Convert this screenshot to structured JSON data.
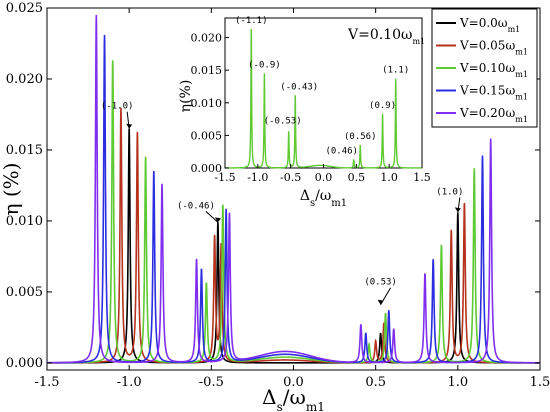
{
  "chart_data": [
    {
      "type": "line",
      "xlabel": "Δs/ωm1",
      "ylabel": "η (%)",
      "xlim": [
        -1.5,
        1.5
      ],
      "ylim": [
        -0.0005,
        0.025
      ],
      "xticks": [
        -1.5,
        -1.0,
        -0.5,
        0.0,
        0.5,
        1.0,
        1.5
      ],
      "xtick_labels": [
        "-1.5",
        "-1.0",
        "-0.5",
        "0.0",
        "0.5",
        "1.0",
        "1.5"
      ],
      "yticks": [
        0.0,
        0.005,
        0.01,
        0.015,
        0.02,
        0.025
      ],
      "ytick_labels": [
        "0.000",
        "0.005",
        "0.010",
        "0.015",
        "0.020",
        "0.025"
      ],
      "legend": {
        "placement": "top-right"
      },
      "series": [
        {
          "name": "V=0.0ωm1",
          "color": "#000000",
          "peaks": [
            [
              -1.0,
              0.0165
            ],
            [
              -0.46,
              0.0099
            ],
            [
              0.53,
              0.0021
            ],
            [
              1.0,
              0.0106
            ]
          ],
          "base_bump": 0.0
        },
        {
          "name": "V=0.05ωm1",
          "color": "#b5331e",
          "peaks": [
            [
              -1.05,
              0.0179
            ],
            [
              -0.95,
              0.0162
            ],
            [
              -0.48,
              0.0088
            ],
            [
              -0.44,
              0.0082
            ],
            [
              0.5,
              0.0015
            ],
            [
              0.55,
              0.0028
            ],
            [
              0.96,
              0.0093
            ],
            [
              1.04,
              0.0112
            ]
          ],
          "base_bump": 0.0002
        },
        {
          "name": "V=0.10ωm1",
          "color": "#5ec932",
          "peaks": [
            [
              -1.1,
              0.0213
            ],
            [
              -0.9,
              0.0145
            ],
            [
              -0.53,
              0.0056
            ],
            [
              -0.43,
              0.0111
            ],
            [
              0.46,
              0.0013
            ],
            [
              0.56,
              0.0035
            ],
            [
              0.9,
              0.0083
            ],
            [
              1.1,
              0.0137
            ]
          ],
          "base_bump": 0.0004
        },
        {
          "name": "V=0.15ωm1",
          "color": "#2b2ee0",
          "peaks": [
            [
              -1.15,
              0.0231
            ],
            [
              -0.85,
              0.0135
            ],
            [
              -0.56,
              0.0066
            ],
            [
              -0.41,
              0.0108
            ],
            [
              0.44,
              0.0021
            ],
            [
              0.58,
              0.0037
            ],
            [
              0.85,
              0.0073
            ],
            [
              1.15,
              0.0146
            ]
          ],
          "base_bump": 0.0006
        },
        {
          "name": "V=0.20ωm1",
          "color": "#7f2ef0",
          "peaks": [
            [
              -1.2,
              0.0245
            ],
            [
              -0.8,
              0.0126
            ],
            [
              -0.59,
              0.0073
            ],
            [
              -0.39,
              0.0105
            ],
            [
              0.41,
              0.0027
            ],
            [
              0.61,
              0.0024
            ],
            [
              0.8,
              0.0063
            ],
            [
              1.2,
              0.0158
            ]
          ],
          "base_bump": 0.0008
        }
      ],
      "annotations": [
        {
          "text": "(-1.0)",
          "x": -1.0,
          "y": 0.0165
        },
        {
          "text": "(-0.46)",
          "x": -0.46,
          "y": 0.0099
        },
        {
          "text": "(0.53)",
          "x": 0.53,
          "y": 0.0041
        },
        {
          "text": "(1.0)",
          "x": 1.0,
          "y": 0.0106
        }
      ]
    },
    {
      "type": "line",
      "title": "V=0.10ωm1",
      "xlabel": "Δs/ωm1",
      "ylabel": "η(%)",
      "xlim": [
        -1.5,
        1.5
      ],
      "ylim": [
        0.0,
        0.023
      ],
      "xticks": [
        -1.5,
        -1.0,
        -0.5,
        0.0,
        0.5,
        1.0,
        1.5
      ],
      "xtick_labels": [
        "-1.5",
        "-1.0",
        "-0.5",
        "0.0",
        "0.5",
        "1.0",
        "1.5"
      ],
      "yticks": [
        0.0,
        0.005,
        0.01,
        0.015,
        0.02
      ],
      "ytick_labels": [
        "0.000",
        "0.005",
        "0.010",
        "0.015",
        "0.020"
      ],
      "series": [
        {
          "color": "#5ec932",
          "peaks": [
            [
              -1.1,
              0.0213
            ],
            [
              -0.9,
              0.0145
            ],
            [
              -0.53,
              0.0056
            ],
            [
              -0.43,
              0.0111
            ],
            [
              0.46,
              0.0013
            ],
            [
              0.56,
              0.0035
            ],
            [
              0.9,
              0.0083
            ],
            [
              1.1,
              0.0137
            ]
          ],
          "base_bump": 0.0004
        }
      ],
      "annotations": [
        {
          "text": "(-1.1)",
          "x": -1.1,
          "y": 0.0213
        },
        {
          "text": "(-0.9)",
          "x": -0.9,
          "y": 0.0145
        },
        {
          "text": "(-0.43)",
          "x": -0.43,
          "y": 0.0111
        },
        {
          "text": "(-0.53)",
          "x": -0.53,
          "y": 0.0056
        },
        {
          "text": "(0.46)",
          "x": 0.46,
          "y": 0.0013
        },
        {
          "text": "(0.56)",
          "x": 0.56,
          "y": 0.0035
        },
        {
          "text": "(0.9)",
          "x": 0.9,
          "y": 0.0083
        },
        {
          "text": "(1.1)",
          "x": 1.1,
          "y": 0.0137
        }
      ]
    }
  ]
}
